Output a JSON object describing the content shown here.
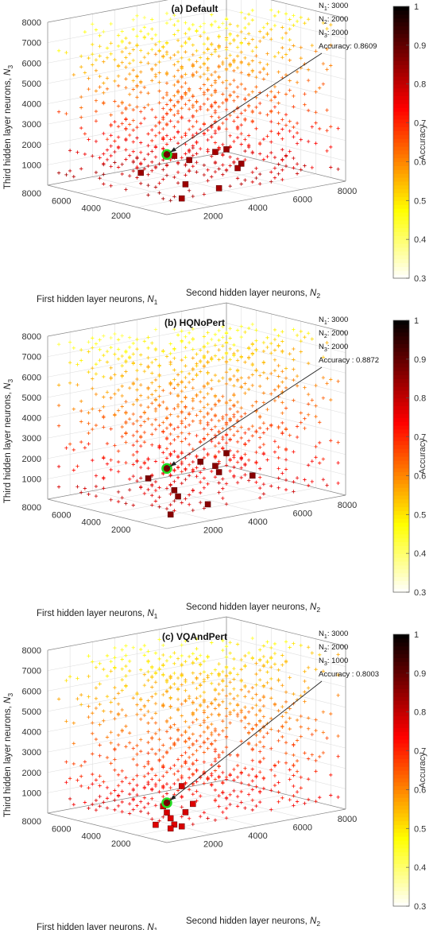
{
  "chart_data": [
    {
      "type": "scatter",
      "title": "(a) Default",
      "x_axis_label": "First hidden layer neurons,",
      "x_axis_symbol": "N1",
      "y_axis_label": "Second hidden layer neurons,",
      "y_axis_symbol": "N2",
      "z_axis_label": "Third hidden layer neurons,",
      "z_axis_symbol": "N3",
      "x_ticks": [
        2000,
        4000,
        6000,
        8000
      ],
      "y_ticks": [
        2000,
        4000,
        6000,
        8000
      ],
      "z_ticks": [
        1000,
        2000,
        3000,
        4000,
        5000,
        6000,
        7000,
        8000
      ],
      "xlim": [
        0,
        8000
      ],
      "ylim": [
        0,
        8000
      ],
      "zlim": [
        0,
        8000
      ],
      "colorbar": {
        "label": "Accuracy",
        "min": 0.3,
        "max": 1,
        "ticks": [
          0.3,
          0.4,
          0.5,
          0.6,
          0.7,
          0.8,
          0.9,
          1
        ],
        "colormap": "hot-reversed"
      },
      "highlight": {
        "n1": 3000,
        "n2": 2000,
        "n3": 2000,
        "accuracy": 0.8609
      },
      "annotation": {
        "n1_text": "N1: 3000",
        "n2_text": "N2: 2000",
        "n3_text": "N3: 2000",
        "acc_text": "Accuracy: 0.8609"
      },
      "top_points": [
        {
          "n1": 500,
          "n2": 3000,
          "n3": 2500,
          "accuracy": 0.84
        },
        {
          "n1": 1500,
          "n2": 2000,
          "n3": 2000,
          "accuracy": 0.84
        },
        {
          "n1": 1000,
          "n2": 4000,
          "n3": 1500,
          "accuracy": 0.84
        },
        {
          "n1": 2000,
          "n2": 3500,
          "n3": 2000,
          "accuracy": 0.83
        },
        {
          "n1": 2500,
          "n2": 500,
          "n3": 1500,
          "accuracy": 0.84
        },
        {
          "n1": 1000,
          "n2": 1000,
          "n3": 2500,
          "accuracy": 0.83
        },
        {
          "n1": 1000,
          "n2": 1500,
          "n3": 1000,
          "accuracy": 0.84
        },
        {
          "n1": 500,
          "n2": 1000,
          "n3": 500,
          "accuracy": 0.83
        },
        {
          "n1": 2000,
          "n2": 4500,
          "n3": 1000,
          "accuracy": 0.83
        },
        {
          "n1": 1000,
          "n2": 3000,
          "n3": 500,
          "accuracy": 0.83
        }
      ],
      "grid_fade": 1.0
    },
    {
      "type": "scatter",
      "title": "(b) HQNoPert",
      "x_axis_label": "First hidden layer neurons,",
      "x_axis_symbol": "N1",
      "y_axis_label": "Second hidden layer neurons,",
      "y_axis_symbol": "N2",
      "z_axis_label": "Third hidden layer neurons,",
      "z_axis_symbol": "N3",
      "x_ticks": [
        2000,
        4000,
        6000,
        8000
      ],
      "y_ticks": [
        2000,
        4000,
        6000,
        8000
      ],
      "z_ticks": [
        1000,
        2000,
        3000,
        4000,
        5000,
        6000,
        7000,
        8000
      ],
      "xlim": [
        0,
        8000
      ],
      "ylim": [
        0,
        8000
      ],
      "zlim": [
        0,
        8000
      ],
      "colorbar": {
        "label": "Accuracy",
        "min": 0.3,
        "max": 1,
        "ticks": [
          0.3,
          0.4,
          0.5,
          0.6,
          0.7,
          0.8,
          0.9,
          1
        ],
        "colormap": "hot-reversed"
      },
      "highlight": {
        "n1": 3000,
        "n2": 2000,
        "n3": 2000,
        "accuracy": 0.8872
      },
      "annotation": {
        "n1_text": "N1: 3000",
        "n2_text": "N2: 2000",
        "n3_text": "N3: 2000",
        "acc_text": "Accuracy : 0.8872"
      },
      "top_points": [
        {
          "n1": 500,
          "n2": 3000,
          "n3": 3000,
          "accuracy": 0.87
        },
        {
          "n1": 1500,
          "n2": 2500,
          "n3": 2500,
          "accuracy": 0.87
        },
        {
          "n1": 1000,
          "n2": 4500,
          "n3": 1500,
          "accuracy": 0.86
        },
        {
          "n1": 2000,
          "n2": 3500,
          "n3": 2000,
          "accuracy": 0.86
        },
        {
          "n1": 2000,
          "n2": 500,
          "n3": 2000,
          "accuracy": 0.87
        },
        {
          "n1": 1000,
          "n2": 1000,
          "n3": 1500,
          "accuracy": 0.86
        },
        {
          "n1": 1500,
          "n2": 1500,
          "n3": 1000,
          "accuracy": 0.86
        },
        {
          "n1": 500,
          "n2": 500,
          "n3": 500,
          "accuracy": 0.86
        },
        {
          "n1": 2500,
          "n2": 4000,
          "n3": 1500,
          "accuracy": 0.86
        },
        {
          "n1": 1000,
          "n2": 2500,
          "n3": 500,
          "accuracy": 0.86
        }
      ],
      "grid_fade": 0.9
    },
    {
      "type": "scatter",
      "title": "(c) VQAndPert",
      "x_axis_label": "First hidden layer neurons,",
      "x_axis_symbol": "N1",
      "y_axis_label": "Second hidden layer neurons,",
      "y_axis_symbol": "N2",
      "z_axis_label": "Third hidden layer neurons,",
      "z_axis_symbol": "N3",
      "x_ticks": [
        2000,
        4000,
        6000,
        8000
      ],
      "y_ticks": [
        2000,
        4000,
        6000,
        8000
      ],
      "z_ticks": [
        1000,
        2000,
        3000,
        4000,
        5000,
        6000,
        7000,
        8000
      ],
      "xlim": [
        0,
        8000
      ],
      "ylim": [
        0,
        8000
      ],
      "zlim": [
        0,
        8000
      ],
      "colorbar": {
        "label": "Accuracy",
        "min": 0.3,
        "max": 1,
        "ticks": [
          0.3,
          0.4,
          0.5,
          0.6,
          0.7,
          0.8,
          0.9,
          1
        ],
        "colormap": "hot-reversed"
      },
      "highlight": {
        "n1": 3000,
        "n2": 2000,
        "n3": 1000,
        "accuracy": 0.8003
      },
      "annotation": {
        "n1_text": "N1: 3000",
        "n2_text": "N2: 2000",
        "n3_text": "N3: 1000",
        "acc_text": "Accuracy : 0.8003"
      },
      "top_points": [
        {
          "n1": 1000,
          "n2": 1500,
          "n3": 1000,
          "accuracy": 0.78
        },
        {
          "n1": 1500,
          "n2": 1000,
          "n3": 1000,
          "accuracy": 0.78
        },
        {
          "n1": 500,
          "n2": 1500,
          "n3": 1500,
          "accuracy": 0.77
        },
        {
          "n1": 1000,
          "n2": 500,
          "n3": 1500,
          "accuracy": 0.78
        },
        {
          "n1": 500,
          "n2": 500,
          "n3": 1000,
          "accuracy": 0.77
        },
        {
          "n1": 500,
          "n2": 1000,
          "n3": 500,
          "accuracy": 0.78
        },
        {
          "n1": 1000,
          "n2": 1000,
          "n3": 500,
          "accuracy": 0.77
        },
        {
          "n1": 1500,
          "n2": 500,
          "n3": 500,
          "accuracy": 0.77
        },
        {
          "n1": 2000,
          "n2": 2000,
          "n3": 2000,
          "accuracy": 0.78
        },
        {
          "n1": 500,
          "n2": 500,
          "n3": 500,
          "accuracy": 0.77
        }
      ],
      "grid_fade": 0.8
    }
  ]
}
